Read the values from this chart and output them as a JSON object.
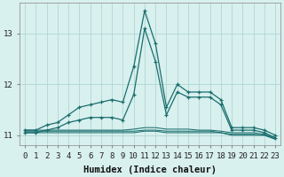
{
  "xlabel": "Humidex (Indice chaleur)",
  "ylabel": "",
  "bg_color": "#d8f0ee",
  "grid_color": "#b0d8d4",
  "line_color": "#1a6e6e",
  "x_values": [
    0,
    1,
    2,
    3,
    4,
    5,
    6,
    7,
    8,
    9,
    10,
    11,
    12,
    13,
    14,
    15,
    16,
    17,
    18,
    19,
    20,
    21,
    22,
    23
  ],
  "series": [
    [
      11.1,
      11.1,
      11.2,
      11.25,
      11.4,
      11.55,
      11.6,
      11.65,
      11.7,
      11.65,
      12.35,
      13.45,
      12.8,
      11.55,
      12.0,
      11.85,
      11.85,
      11.85,
      11.7,
      11.15,
      11.15,
      11.15,
      11.1,
      11.0
    ],
    [
      11.05,
      11.05,
      11.1,
      11.15,
      11.25,
      11.3,
      11.35,
      11.35,
      11.35,
      11.3,
      11.8,
      13.1,
      12.45,
      11.4,
      11.85,
      11.75,
      11.75,
      11.75,
      11.6,
      11.1,
      11.1,
      11.1,
      11.05,
      10.95
    ],
    [
      11.05,
      11.05,
      11.05,
      11.05,
      11.05,
      11.05,
      11.05,
      11.05,
      11.05,
      11.05,
      11.05,
      11.08,
      11.08,
      11.05,
      11.05,
      11.05,
      11.05,
      11.05,
      11.05,
      11.0,
      11.0,
      11.0,
      11.0,
      10.92
    ],
    [
      11.08,
      11.08,
      11.08,
      11.08,
      11.08,
      11.08,
      11.08,
      11.08,
      11.08,
      11.08,
      11.08,
      11.1,
      11.1,
      11.08,
      11.08,
      11.08,
      11.08,
      11.08,
      11.05,
      11.02,
      11.02,
      11.02,
      11.0,
      10.93
    ],
    [
      11.1,
      11.1,
      11.1,
      11.1,
      11.1,
      11.1,
      11.1,
      11.1,
      11.1,
      11.1,
      11.12,
      11.15,
      11.15,
      11.12,
      11.12,
      11.12,
      11.1,
      11.1,
      11.08,
      11.05,
      11.05,
      11.05,
      11.02,
      10.95
    ]
  ],
  "has_markers": [
    true,
    true,
    false,
    false,
    false
  ],
  "ylim": [
    10.8,
    13.6
  ],
  "yticks": [
    11,
    12,
    13
  ],
  "xlim": [
    -0.5,
    23.5
  ],
  "xticks": [
    0,
    1,
    2,
    3,
    4,
    5,
    6,
    7,
    8,
    9,
    10,
    11,
    12,
    13,
    14,
    15,
    16,
    17,
    18,
    19,
    20,
    21,
    22,
    23
  ],
  "tick_fontsize": 6.5,
  "label_fontsize": 7.5
}
